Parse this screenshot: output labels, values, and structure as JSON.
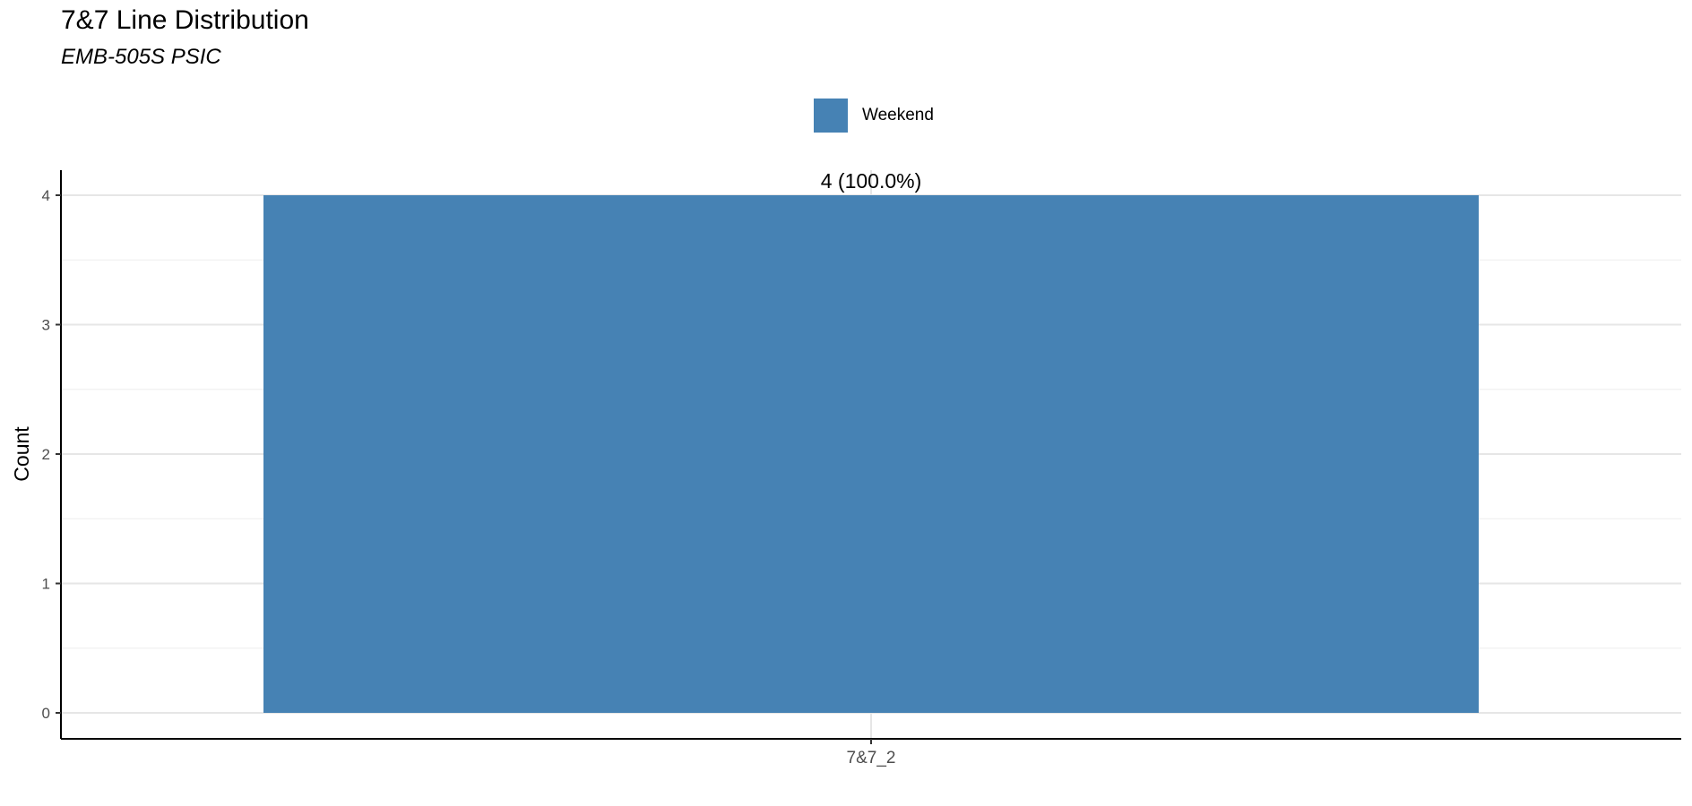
{
  "title": "7&7 Line Distribution",
  "subtitle": "EMB-505S PSIC",
  "legend": {
    "items": [
      {
        "label": "Weekend",
        "color": "#4682b4"
      }
    ],
    "placement": "top-center"
  },
  "chart_data": {
    "type": "bar",
    "title": "7&7 Line Distribution",
    "subtitle": "EMB-505S PSIC",
    "xlabel": "",
    "ylabel": "Count",
    "categories": [
      "7&7_2"
    ],
    "series": [
      {
        "name": "Weekend",
        "values": [
          4
        ],
        "color": "#4682b4"
      }
    ],
    "data_labels": [
      "4 (100.0%)"
    ],
    "ylim": [
      0,
      4
    ],
    "y_ticks": [
      0,
      1,
      2,
      3,
      4
    ],
    "grid": true,
    "legend_placement": "top-center"
  }
}
